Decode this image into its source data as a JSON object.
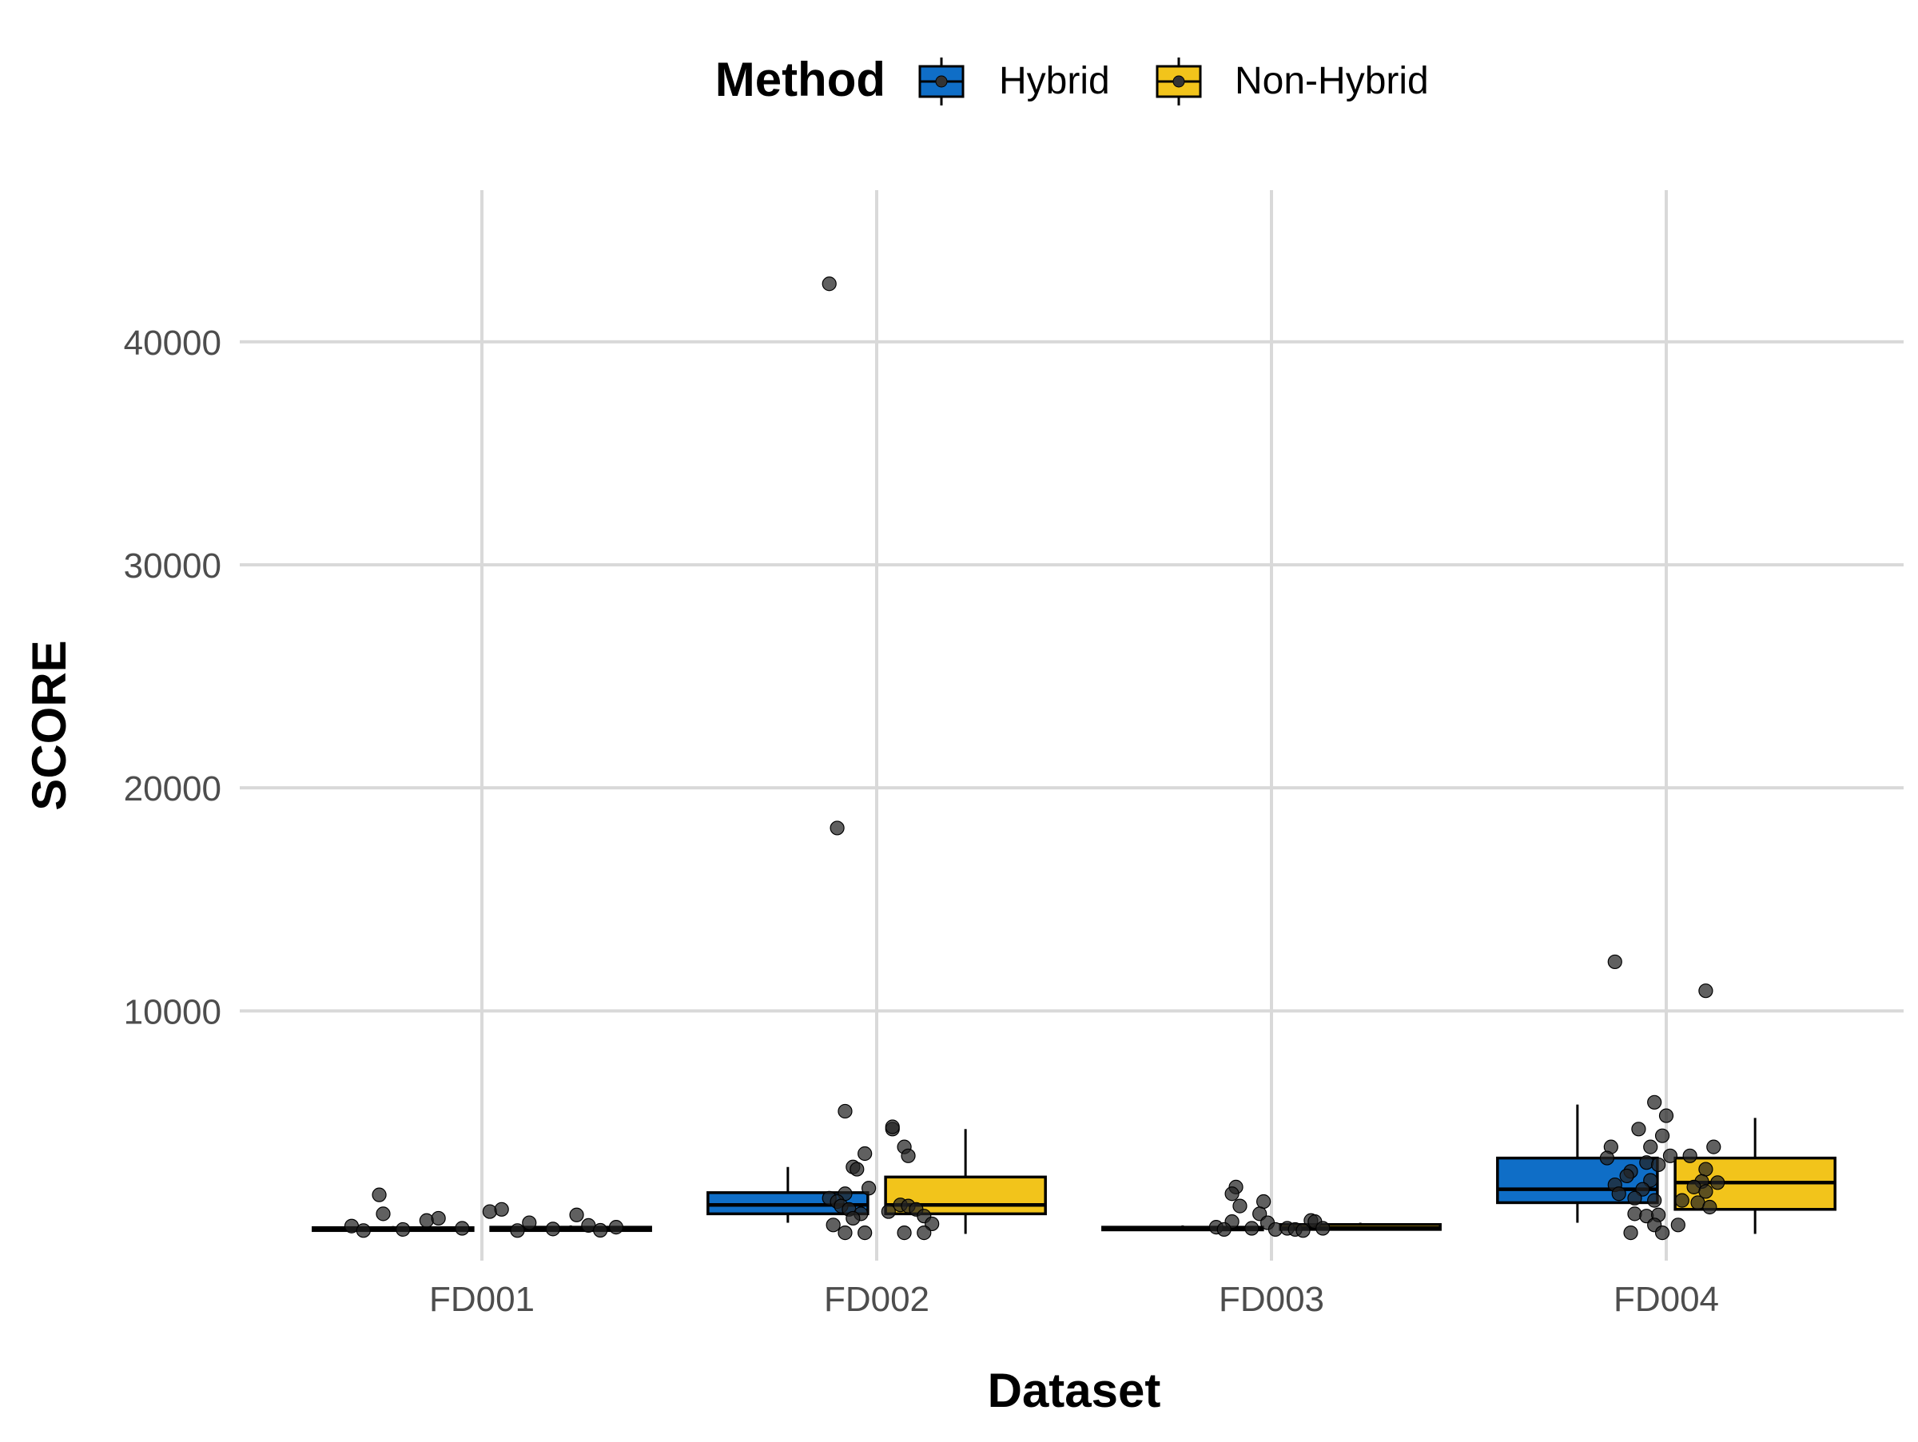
{
  "chart_data": {
    "type": "box",
    "xlabel": "Dataset",
    "ylabel": "SCORE",
    "legend": {
      "title": "Method",
      "position": "top",
      "entries": [
        {
          "name": "Hybrid",
          "color": "#0F6EC7"
        },
        {
          "name": "Non-Hybrid",
          "color": "#F2C41B"
        }
      ]
    },
    "grid": true,
    "ylim": [
      -1200,
      46800
    ],
    "y_ticks": [
      10000,
      20000,
      30000,
      40000
    ],
    "y_tick_labels": [
      "10000",
      "20000",
      "30000",
      "40000"
    ],
    "categories": [
      "FD001",
      "FD002",
      "FD003",
      "FD004"
    ],
    "series": [
      {
        "name": "Hybrid",
        "color": "#0F6EC7",
        "boxes": [
          {
            "category": "FD001",
            "q1": 150,
            "median": 200,
            "q3": 280,
            "whisker_low": 120,
            "whisker_high": 350
          },
          {
            "category": "FD002",
            "q1": 900,
            "median": 1300,
            "q3": 1850,
            "whisker_low": 500,
            "whisker_high": 3000
          },
          {
            "category": "FD003",
            "q1": 180,
            "median": 230,
            "q3": 300,
            "whisker_low": 150,
            "whisker_high": 380
          },
          {
            "category": "FD004",
            "q1": 1400,
            "median": 2000,
            "q3": 3400,
            "whisker_low": 500,
            "whisker_high": 5800
          }
        ]
      },
      {
        "name": "Non-Hybrid",
        "color": "#F2C41B",
        "boxes": [
          {
            "category": "FD001",
            "q1": 150,
            "median": 220,
            "q3": 300,
            "whisker_low": 120,
            "whisker_high": 380
          },
          {
            "category": "FD002",
            "q1": 900,
            "median": 1300,
            "q3": 2550,
            "whisker_low": 0,
            "whisker_high": 4700
          },
          {
            "category": "FD003",
            "q1": 200,
            "median": 260,
            "q3": 420,
            "whisker_low": 150,
            "whisker_high": 500
          },
          {
            "category": "FD004",
            "q1": 1100,
            "median": 2300,
            "q3": 3400,
            "whisker_low": 0,
            "whisker_high": 5200
          }
        ]
      }
    ],
    "points": [
      {
        "category": "FD001",
        "dx": -0.26,
        "y": 1750
      },
      {
        "category": "FD001",
        "dx": -0.25,
        "y": 900
      },
      {
        "category": "FD001",
        "dx": -0.14,
        "y": 600
      },
      {
        "category": "FD001",
        "dx": -0.11,
        "y": 700
      },
      {
        "category": "FD001",
        "dx": 0.02,
        "y": 1000
      },
      {
        "category": "FD001",
        "dx": 0.05,
        "y": 1100
      },
      {
        "category": "FD001",
        "dx": 0.12,
        "y": 500
      },
      {
        "category": "FD001",
        "dx": 0.24,
        "y": 850
      },
      {
        "category": "FD001",
        "dx": 0.27,
        "y": 380
      },
      {
        "category": "FD001",
        "dx": -0.33,
        "y": 350
      },
      {
        "category": "FD001",
        "dx": -0.3,
        "y": 150
      },
      {
        "category": "FD001",
        "dx": -0.2,
        "y": 200
      },
      {
        "category": "FD001",
        "dx": -0.05,
        "y": 250
      },
      {
        "category": "FD001",
        "dx": 0.09,
        "y": 150
      },
      {
        "category": "FD001",
        "dx": 0.18,
        "y": 220
      },
      {
        "category": "FD001",
        "dx": 0.3,
        "y": 160
      },
      {
        "category": "FD001",
        "dx": 0.34,
        "y": 300
      },
      {
        "category": "FD002",
        "dx": -0.12,
        "y": 42600
      },
      {
        "category": "FD002",
        "dx": -0.1,
        "y": 18200
      },
      {
        "category": "FD002",
        "dx": -0.08,
        "y": 5500
      },
      {
        "category": "FD002",
        "dx": 0.04,
        "y": 4700
      },
      {
        "category": "FD002",
        "dx": 0.04,
        "y": 4800
      },
      {
        "category": "FD002",
        "dx": 0.07,
        "y": 3900
      },
      {
        "category": "FD002",
        "dx": 0.08,
        "y": 3500
      },
      {
        "category": "FD002",
        "dx": -0.03,
        "y": 3600
      },
      {
        "category": "FD002",
        "dx": -0.06,
        "y": 3000
      },
      {
        "category": "FD002",
        "dx": -0.05,
        "y": 2900
      },
      {
        "category": "FD002",
        "dx": -0.02,
        "y": 2050
      },
      {
        "category": "FD002",
        "dx": -0.08,
        "y": 1800
      },
      {
        "category": "FD002",
        "dx": -0.12,
        "y": 1600
      },
      {
        "category": "FD002",
        "dx": -0.1,
        "y": 1450
      },
      {
        "category": "FD002",
        "dx": -0.09,
        "y": 1250
      },
      {
        "category": "FD002",
        "dx": -0.07,
        "y": 1100
      },
      {
        "category": "FD002",
        "dx": -0.04,
        "y": 900
      },
      {
        "category": "FD002",
        "dx": -0.06,
        "y": 700
      },
      {
        "category": "FD002",
        "dx": 0.06,
        "y": 1300
      },
      {
        "category": "FD002",
        "dx": 0.08,
        "y": 1250
      },
      {
        "category": "FD002",
        "dx": 0.1,
        "y": 1100
      },
      {
        "category": "FD002",
        "dx": 0.03,
        "y": 1000
      },
      {
        "category": "FD002",
        "dx": 0.12,
        "y": 800
      },
      {
        "category": "FD002",
        "dx": 0.14,
        "y": 450
      },
      {
        "category": "FD002",
        "dx": -0.11,
        "y": 400
      },
      {
        "category": "FD002",
        "dx": -0.08,
        "y": 50
      },
      {
        "category": "FD002",
        "dx": -0.03,
        "y": 50
      },
      {
        "category": "FD002",
        "dx": 0.07,
        "y": 50
      },
      {
        "category": "FD002",
        "dx": 0.12,
        "y": 50
      },
      {
        "category": "FD003",
        "dx": -0.09,
        "y": 2100
      },
      {
        "category": "FD003",
        "dx": -0.1,
        "y": 1800
      },
      {
        "category": "FD003",
        "dx": -0.02,
        "y": 1450
      },
      {
        "category": "FD003",
        "dx": -0.08,
        "y": 1250
      },
      {
        "category": "FD003",
        "dx": -0.03,
        "y": 900
      },
      {
        "category": "FD003",
        "dx": -0.1,
        "y": 550
      },
      {
        "category": "FD003",
        "dx": -0.01,
        "y": 500
      },
      {
        "category": "FD003",
        "dx": 0.1,
        "y": 600
      },
      {
        "category": "FD003",
        "dx": 0.11,
        "y": 550
      },
      {
        "category": "FD003",
        "dx": -0.14,
        "y": 300
      },
      {
        "category": "FD003",
        "dx": -0.12,
        "y": 200
      },
      {
        "category": "FD003",
        "dx": -0.05,
        "y": 250
      },
      {
        "category": "FD003",
        "dx": 0.01,
        "y": 200
      },
      {
        "category": "FD003",
        "dx": 0.04,
        "y": 250
      },
      {
        "category": "FD003",
        "dx": 0.06,
        "y": 200
      },
      {
        "category": "FD003",
        "dx": 0.13,
        "y": 250
      },
      {
        "category": "FD003",
        "dx": 0.08,
        "y": 150
      },
      {
        "category": "FD004",
        "dx": -0.13,
        "y": 12200
      },
      {
        "category": "FD004",
        "dx": 0.1,
        "y": 10900
      },
      {
        "category": "FD004",
        "dx": -0.03,
        "y": 5900
      },
      {
        "category": "FD004",
        "dx": 0.0,
        "y": 5300
      },
      {
        "category": "FD004",
        "dx": -0.07,
        "y": 4700
      },
      {
        "category": "FD004",
        "dx": -0.01,
        "y": 4400
      },
      {
        "category": "FD004",
        "dx": -0.14,
        "y": 3900
      },
      {
        "category": "FD004",
        "dx": -0.04,
        "y": 3900
      },
      {
        "category": "FD004",
        "dx": 0.12,
        "y": 3900
      },
      {
        "category": "FD004",
        "dx": 0.01,
        "y": 3500
      },
      {
        "category": "FD004",
        "dx": 0.06,
        "y": 3500
      },
      {
        "category": "FD004",
        "dx": -0.15,
        "y": 3400
      },
      {
        "category": "FD004",
        "dx": -0.05,
        "y": 3200
      },
      {
        "category": "FD004",
        "dx": -0.02,
        "y": 3100
      },
      {
        "category": "FD004",
        "dx": -0.09,
        "y": 2800
      },
      {
        "category": "FD004",
        "dx": 0.1,
        "y": 2900
      },
      {
        "category": "FD004",
        "dx": -0.1,
        "y": 2600
      },
      {
        "category": "FD004",
        "dx": -0.04,
        "y": 2400
      },
      {
        "category": "FD004",
        "dx": 0.09,
        "y": 2350
      },
      {
        "category": "FD004",
        "dx": 0.13,
        "y": 2300
      },
      {
        "category": "FD004",
        "dx": -0.13,
        "y": 2200
      },
      {
        "category": "FD004",
        "dx": -0.06,
        "y": 2000
      },
      {
        "category": "FD004",
        "dx": 0.07,
        "y": 2100
      },
      {
        "category": "FD004",
        "dx": -0.12,
        "y": 1800
      },
      {
        "category": "FD004",
        "dx": 0.1,
        "y": 1900
      },
      {
        "category": "FD004",
        "dx": -0.08,
        "y": 1600
      },
      {
        "category": "FD004",
        "dx": -0.03,
        "y": 1500
      },
      {
        "category": "FD004",
        "dx": 0.04,
        "y": 1500
      },
      {
        "category": "FD004",
        "dx": 0.08,
        "y": 1400
      },
      {
        "category": "FD004",
        "dx": 0.11,
        "y": 1200
      },
      {
        "category": "FD004",
        "dx": -0.08,
        "y": 900
      },
      {
        "category": "FD004",
        "dx": -0.05,
        "y": 800
      },
      {
        "category": "FD004",
        "dx": -0.02,
        "y": 850
      },
      {
        "category": "FD004",
        "dx": -0.03,
        "y": 400
      },
      {
        "category": "FD004",
        "dx": 0.03,
        "y": 400
      },
      {
        "category": "FD004",
        "dx": -0.09,
        "y": 50
      },
      {
        "category": "FD004",
        "dx": -0.01,
        "y": 50
      }
    ]
  }
}
